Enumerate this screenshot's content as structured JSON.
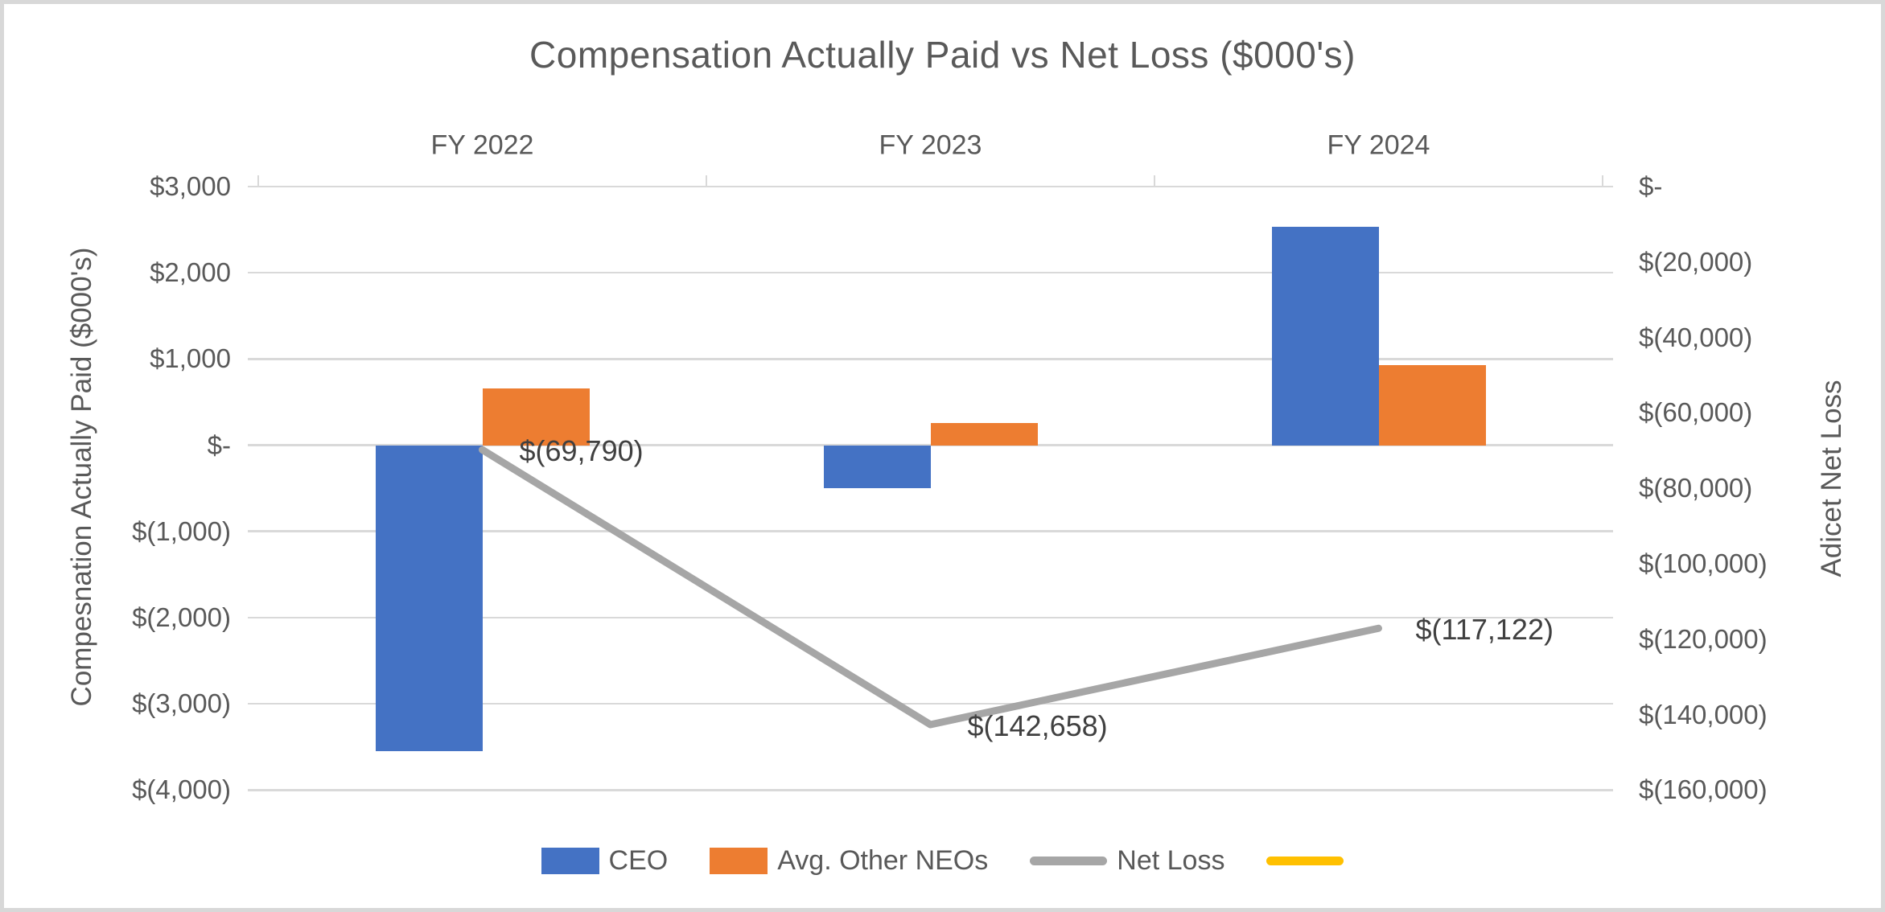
{
  "chart_data": {
    "type": "bar",
    "subtype": "combo-bar-line-dual-axis",
    "title": "Compensation Actually Paid vs Net Loss ($000's)",
    "categories": [
      "FY 2022",
      "FY 2023",
      "FY 2024"
    ],
    "series": [
      {
        "name": "CEO",
        "type": "bar",
        "axis": "left",
        "color": "#4472C4",
        "values": [
          -3550,
          -500,
          2530
        ]
      },
      {
        "name": "Avg. Other NEOs",
        "type": "bar",
        "axis": "left",
        "color": "#ED7D31",
        "values": [
          660,
          260,
          925
        ]
      },
      {
        "name": "Net Loss",
        "type": "line",
        "axis": "right",
        "color": "#A6A6A6",
        "values": [
          -69790,
          -142658,
          -117122
        ],
        "point_labels": [
          "$(69,790)",
          "$(142,658)",
          "$(117,122)"
        ]
      },
      {
        "name": "",
        "type": "line",
        "axis": "right",
        "color": "#FFC000",
        "values": []
      }
    ],
    "left_axis": {
      "title": "Compesnation Actually Paid ($000's)",
      "min": -4000,
      "max": 3000,
      "ticks": [
        "$3,000",
        "$2,000",
        "$1,000",
        "$-",
        "$(1,000)",
        "$(2,000)",
        "$(3,000)",
        "$(4,000)"
      ]
    },
    "right_axis": {
      "title": "Adicet Net Loss",
      "min": -160000,
      "max": 0,
      "ticks": [
        "$-",
        "$(20,000)",
        "$(40,000)",
        "$(60,000)",
        "$(80,000)",
        "$(100,000)",
        "$(120,000)",
        "$(140,000)",
        "$(160,000)"
      ]
    },
    "grid": "horizontal-on",
    "legend_position": "bottom"
  },
  "colors": {
    "text": "#595959",
    "data_label": "#404040",
    "gridline": "#D9D9D9",
    "frame_border": "#D8D8D8",
    "background": "#FFFFFF"
  }
}
